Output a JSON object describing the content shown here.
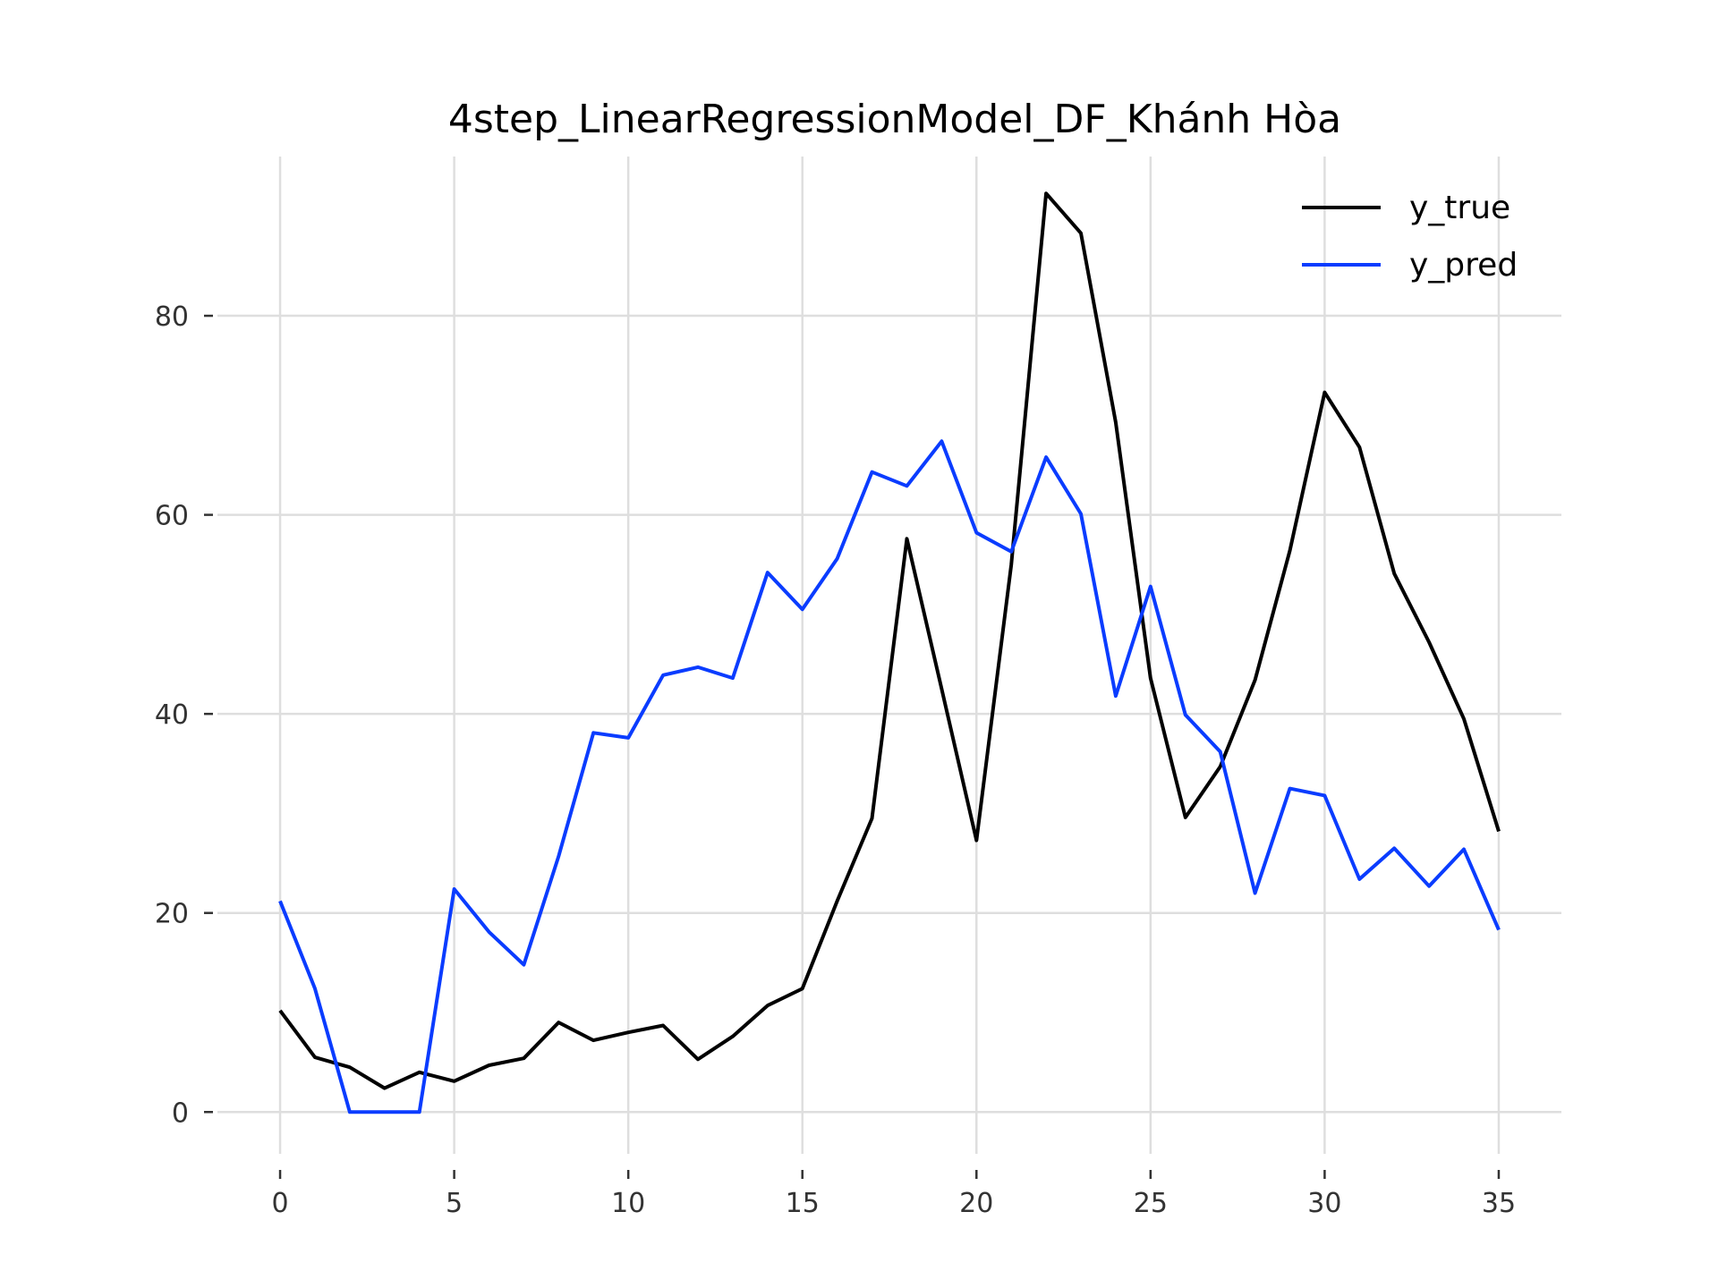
{
  "chart_data": {
    "type": "line",
    "title": "4step_LinearRegressionModel_DF_Khánh Hòa",
    "xlabel": "",
    "ylabel": "",
    "xlim": [
      -1.8,
      36.8
    ],
    "ylim": [
      -4.2,
      96
    ],
    "grid": true,
    "legend_position": "top-right",
    "x_ticks": [
      0,
      5,
      10,
      15,
      20,
      25,
      30,
      35
    ],
    "y_ticks": [
      0,
      20,
      40,
      60,
      80
    ],
    "x": [
      0,
      1,
      2,
      3,
      4,
      5,
      6,
      7,
      8,
      9,
      10,
      11,
      12,
      13,
      14,
      15,
      16,
      17,
      18,
      19,
      20,
      21,
      22,
      23,
      24,
      25,
      26,
      27,
      28,
      29,
      30,
      31,
      32,
      33,
      34,
      35
    ],
    "series": [
      {
        "name": "y_true",
        "color": "#000000",
        "values": [
          10.2,
          5.5,
          4.5,
          2.4,
          4.0,
          3.1,
          4.7,
          5.4,
          9.0,
          7.2,
          8.0,
          8.7,
          5.3,
          7.6,
          10.7,
          12.4,
          21.2,
          29.5,
          57.6,
          42.5,
          27.3,
          55.0,
          92.3,
          88.3,
          69.3,
          43.6,
          29.6,
          34.7,
          43.4,
          56.4,
          72.3,
          66.8,
          54.1,
          47.2,
          39.5,
          28.2
        ]
      },
      {
        "name": "y_pred",
        "color": "#0a3cff",
        "values": [
          21.2,
          12.4,
          0.0,
          0.0,
          0.0,
          22.4,
          18.1,
          14.8,
          25.7,
          38.1,
          37.6,
          43.9,
          44.7,
          43.6,
          54.2,
          50.5,
          55.6,
          64.3,
          62.9,
          67.4,
          58.2,
          56.3,
          65.8,
          60.1,
          41.8,
          52.8,
          39.9,
          36.2,
          22.0,
          32.5,
          31.8,
          23.4,
          26.5,
          22.7,
          26.4,
          18.3
        ]
      }
    ]
  }
}
